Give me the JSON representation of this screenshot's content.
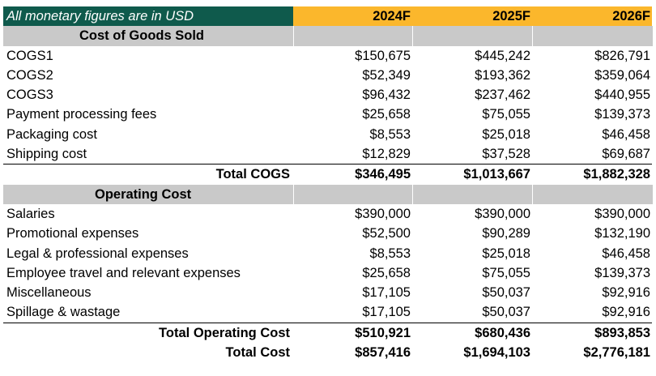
{
  "header": {
    "note": "All monetary figures are in USD",
    "years": [
      "2024F",
      "2025F",
      "2026F"
    ]
  },
  "cogs": {
    "title": "Cost of Goods Sold",
    "rows": [
      {
        "label": "COGS1",
        "v": [
          "$150,675",
          "$445,242",
          "$826,791"
        ]
      },
      {
        "label": "COGS2",
        "v": [
          "$52,349",
          "$193,362",
          "$359,064"
        ]
      },
      {
        "label": "COGS3",
        "v": [
          "$96,432",
          "$237,462",
          "$440,955"
        ]
      },
      {
        "label": "Payment processing fees",
        "v": [
          "$25,658",
          "$75,055",
          "$139,373"
        ]
      },
      {
        "label": "Packaging cost",
        "v": [
          "$8,553",
          "$25,018",
          "$46,458"
        ]
      },
      {
        "label": "Shipping cost",
        "v": [
          "$12,829",
          "$37,528",
          "$69,687"
        ]
      }
    ],
    "total": {
      "label": "Total COGS",
      "v": [
        "$346,495",
        "$1,013,667",
        "$1,882,328"
      ]
    }
  },
  "opex": {
    "title": "Operating Cost",
    "rows": [
      {
        "label": "Salaries",
        "v": [
          "$390,000",
          "$390,000",
          "$390,000"
        ]
      },
      {
        "label": "Promotional expenses",
        "v": [
          "$52,500",
          "$90,289",
          "$132,190"
        ]
      },
      {
        "label": "Legal & professional expenses",
        "v": [
          "$8,553",
          "$25,018",
          "$46,458"
        ]
      },
      {
        "label": "Employee travel and relevant expenses",
        "v": [
          "$25,658",
          "$75,055",
          "$139,373"
        ]
      },
      {
        "label": "Miscellaneous",
        "v": [
          "$17,105",
          "$50,037",
          "$92,916"
        ]
      },
      {
        "label": "Spillage & wastage",
        "v": [
          "$17,105",
          "$50,037",
          "$92,916"
        ]
      }
    ],
    "total": {
      "label": "Total Operating Cost",
      "v": [
        "$510,921",
        "$680,436",
        "$893,853"
      ]
    }
  },
  "grand_total": {
    "label": "Total Cost",
    "v": [
      "$857,416",
      "$1,694,103",
      "$2,776,181"
    ]
  }
}
